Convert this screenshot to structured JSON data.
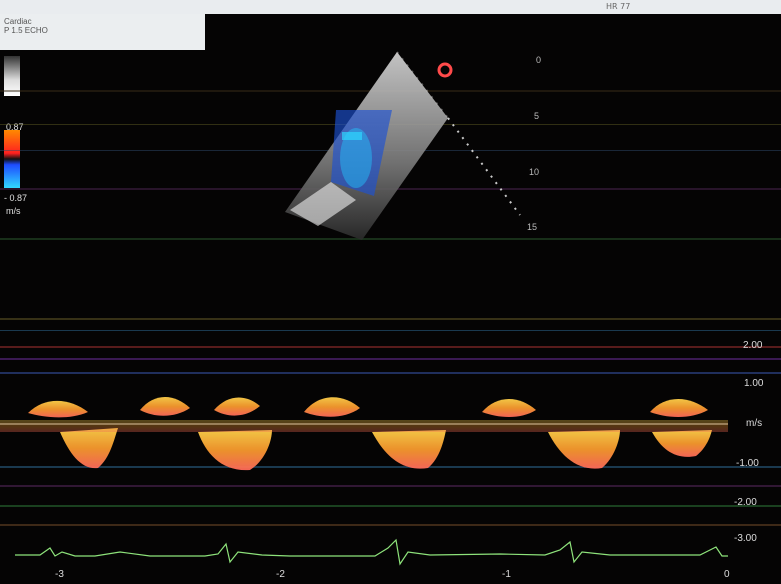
{
  "header": {
    "hr": "HR 77"
  },
  "info": {
    "line1": "Cardiac",
    "line2": "P 1.5  ECHO"
  },
  "color_scale": {
    "top": "0.87",
    "bottom": "- 0.87",
    "unit": "m/s"
  },
  "depth_labels": [
    "0",
    "5",
    "10",
    "15"
  ],
  "doppler_axis": {
    "labels": [
      "2.00",
      "1.00",
      "m/s",
      "-1.00",
      "-2.00",
      "-3.00"
    ]
  },
  "time_axis": {
    "labels": [
      "-3",
      "-2",
      "-1",
      "0"
    ]
  },
  "colors": {
    "background": "#050404",
    "doppler": "#f7a030"
  }
}
